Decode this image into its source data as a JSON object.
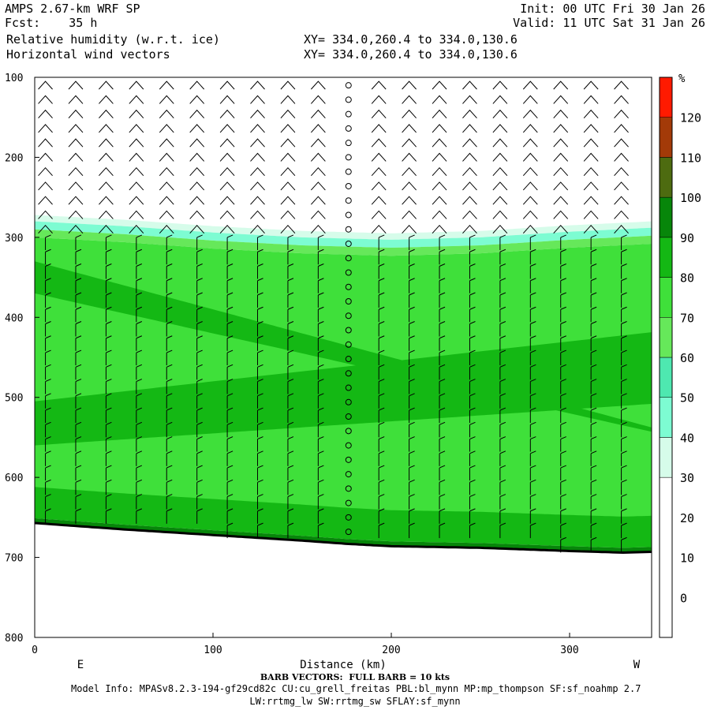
{
  "header": {
    "model": "AMPS 2.67-km WRF SP",
    "forecast": "Fcst:    35 h",
    "field1": "Relative humidity (w.r.t. ice)",
    "field2": "Horizontal wind vectors",
    "xy1": "XY= 334.0,260.4 to 334.0,130.6",
    "xy2": "XY= 334.0,260.4 to 334.0,130.6",
    "init": "Init: 00 UTC Fri 30 Jan 26",
    "valid": "Valid: 11 UTC Sat 31 Jan 26"
  },
  "footer": {
    "barb_note": "BARB VECTORS:  FULL BARB = 10 kts",
    "model_info": "Model Info: MPASv8.2.3-194-gf29cd82c CU:cu_grell_freitas PBL:bl_mynn MP:mp_thompson SF:sf_noahmp 2.7",
    "model_info2": "LW:rrtmg_lw SW:rrtmg_sw SFLAY:sf_mynn"
  },
  "chart_data": {
    "type": "heatmap",
    "title": "Relative humidity (w.r.t. ice)",
    "xlabel": "Distance (km)",
    "ylabel": "",
    "x_ticks": [
      0,
      100,
      200,
      300
    ],
    "y_ticks": [
      100,
      200,
      300,
      400,
      500,
      600,
      700,
      800
    ],
    "xlim": [
      0,
      346
    ],
    "ylim": [
      100,
      800
    ],
    "left_end_label": "E",
    "right_end_label": "W",
    "colorbar": {
      "unit": "%",
      "ticks": [
        0,
        10,
        20,
        30,
        40,
        50,
        60,
        70,
        80,
        90,
        100,
        110,
        120
      ],
      "levels": [
        {
          "min": -10,
          "max": 30,
          "color": "#ffffff"
        },
        {
          "min": 30,
          "max": 40,
          "color": "#d6fcea"
        },
        {
          "min": 40,
          "max": 50,
          "color": "#7dfcd2"
        },
        {
          "min": 50,
          "max": 60,
          "color": "#4ee8b0"
        },
        {
          "min": 60,
          "max": 70,
          "color": "#66e85a"
        },
        {
          "min": 70,
          "max": 80,
          "color": "#3fe03a"
        },
        {
          "min": 80,
          "max": 90,
          "color": "#14b814"
        },
        {
          "min": 90,
          "max": 100,
          "color": "#07860a"
        },
        {
          "min": 100,
          "max": 110,
          "color": "#4d6b10"
        },
        {
          "min": 110,
          "max": 120,
          "color": "#a33a08"
        },
        {
          "min": 120,
          "max": 130,
          "color": "#ff1a00"
        }
      ]
    },
    "terrain_pressure": [
      [
        0,
        657
      ],
      [
        50,
        665
      ],
      [
        100,
        672
      ],
      [
        150,
        679
      ],
      [
        175,
        683
      ],
      [
        200,
        686
      ],
      [
        250,
        688
      ],
      [
        300,
        692
      ],
      [
        330,
        694
      ],
      [
        346,
        693
      ]
    ],
    "moist_top_pressure": [
      [
        0,
        276
      ],
      [
        50,
        282
      ],
      [
        100,
        290
      ],
      [
        150,
        296
      ],
      [
        200,
        299
      ],
      [
        250,
        296
      ],
      [
        300,
        289
      ],
      [
        346,
        284
      ]
    ]
  }
}
